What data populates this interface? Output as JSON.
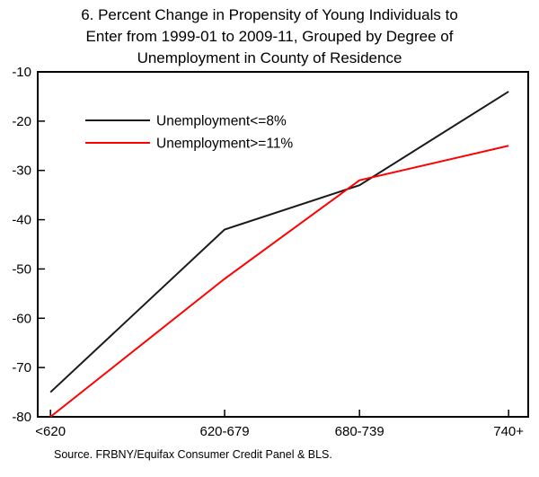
{
  "title": {
    "lines": [
      "6. Percent Change in Propensity of Young Individuals to",
      "Enter from 1999-01 to 2009-11, Grouped by Degree of",
      "Unemployment in County of Residence"
    ]
  },
  "source": "Source. FRBNY/Equifax Consumer Credit Panel & BLS.",
  "chart_data": {
    "type": "line",
    "title": "6. Percent Change in Propensity of Young Individuals to Enter from 1999-01 to 2009-11, Grouped by Degree of Unemployment in County of Residence",
    "xlabel": "",
    "ylabel": "",
    "categories": [
      "<620",
      "620-679",
      "680-739",
      "740+"
    ],
    "series": [
      {
        "name": "Unemployment<=8%",
        "color": "#1a1a1a",
        "values": [
          -75,
          -42,
          -33,
          -14
        ]
      },
      {
        "name": "Unemployment>=11%",
        "color": "#ff0000",
        "values": [
          -80,
          -52,
          -32,
          -25
        ]
      }
    ],
    "ylim": [
      -80,
      -10
    ],
    "yticks": [
      -10,
      -20,
      -30,
      -40,
      -50,
      -60,
      -70,
      -80
    ],
    "grid": false,
    "legend_position": "top-left-inside"
  }
}
